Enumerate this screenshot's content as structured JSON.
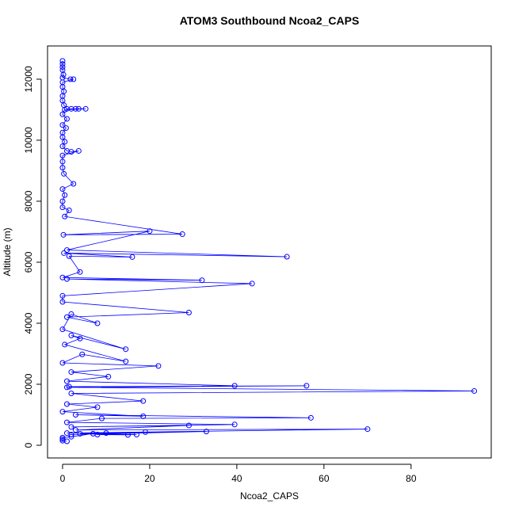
{
  "chart_data": {
    "type": "line",
    "markers": true,
    "title": "ATOM3 Southbound Ncoa2_CAPS",
    "x_label": "Ncoa2_CAPS",
    "y_label": "Altitude (m)",
    "color": "#0000ff",
    "xlim": [
      -3.45,
      98.4
    ],
    "ylim": [
      -416,
      13090
    ],
    "xticks": [
      0,
      20,
      40,
      60,
      80
    ],
    "yticks": [
      0,
      2000,
      4000,
      6000,
      8000,
      10000,
      12000
    ],
    "x": [
      0,
      0,
      0,
      0,
      0.2,
      0,
      1.8,
      2.5,
      0,
      0,
      0.3,
      0,
      0,
      0.3,
      1,
      2,
      3,
      3.7,
      5.3,
      0.5,
      0,
      1,
      0,
      0.8,
      0,
      0,
      0.5,
      0,
      1,
      2,
      3.7,
      0,
      0,
      0,
      0.3,
      2.5,
      0,
      0.5,
      0,
      0,
      1.5,
      0.5,
      27.5,
      0.2,
      20,
      1,
      51.5,
      0.3,
      16,
      1.5,
      4,
      0,
      32,
      1,
      43.5,
      0,
      0,
      29,
      1,
      8,
      2,
      0,
      14.5,
      2,
      4,
      0.5,
      14.5,
      4.5,
      0,
      22,
      2,
      10.5,
      1,
      39.5,
      1.5,
      56,
      1,
      94.5,
      2,
      18.5,
      1,
      8,
      0,
      18.5,
      3,
      57,
      9,
      1,
      39.5,
      2,
      29,
      3,
      70,
      1,
      33,
      2,
      19,
      10,
      4,
      17,
      15,
      8,
      7,
      2,
      0,
      0,
      0,
      1
    ],
    "values": [
      12600,
      12500,
      12400,
      12300,
      12150,
      12050,
      12000,
      12000,
      11900,
      11750,
      11600,
      11450,
      11300,
      11150,
      11030,
      11030,
      11030,
      11030,
      11030,
      11000,
      10850,
      10700,
      10500,
      10400,
      10250,
      10100,
      9950,
      9800,
      9650,
      9620,
      9650,
      9500,
      9300,
      9100,
      8900,
      8570,
      8400,
      8200,
      8000,
      7800,
      7700,
      7500,
      6920,
      6900,
      7020,
      6400,
      6180,
      6300,
      6170,
      6200,
      5680,
      5500,
      5410,
      5450,
      5300,
      4900,
      4700,
      4350,
      4200,
      4000,
      4300,
      3800,
      3150,
      3600,
      3500,
      3300,
      2750,
      2980,
      2700,
      2600,
      2400,
      2250,
      2100,
      1950,
      1920,
      1950,
      1900,
      1780,
      1700,
      1450,
      1350,
      1250,
      1100,
      950,
      1000,
      900,
      880,
      750,
      680,
      600,
      650,
      500,
      530,
      400,
      450,
      350,
      430,
      400,
      380,
      350,
      340,
      350,
      380,
      280,
      250,
      200,
      150,
      130
    ]
  }
}
